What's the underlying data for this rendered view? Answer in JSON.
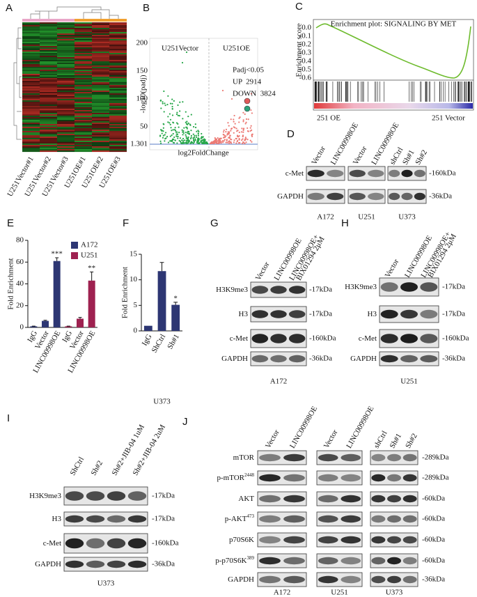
{
  "heatmap": {
    "letter": "A",
    "samples": [
      "U251Vector#1",
      "U251Vector#2",
      "U251Vector#3",
      "U251OE#1",
      "U251OE#2",
      "U251OE#3"
    ]
  },
  "volcano": {
    "letter": "B",
    "left_label": "U251Vector",
    "right_label": "U251OE",
    "threshold": "Padj<0.05",
    "up": "UP  2914",
    "down": "DOWN  3824",
    "y_axis": "-log10(padj)",
    "x_axis": "log2FoldChange",
    "yticks": [
      "200",
      "150",
      "100",
      "50",
      "1.301"
    ]
  },
  "gsea": {
    "letter": "C",
    "title": "Enrichment plot: SIGNALING BY MET",
    "y_axis": "Enrichment score",
    "yticks": [
      "0.0",
      "-0.1",
      "-0.2",
      "-0.3",
      "-0.4",
      "-0.5",
      "-0.6"
    ],
    "left": "251 OE",
    "right": "251 Vector"
  },
  "blot_d": {
    "letter": "D",
    "lanes": [
      [
        "Vector",
        "LINC00998OE"
      ],
      [
        "Vector",
        "LINC00998OE"
      ],
      [
        "shCtrl",
        "Sh#1",
        "Sh#2"
      ]
    ],
    "cell_lines": [
      "A172",
      "U251",
      "U373"
    ],
    "rows": [
      {
        "label": "c-Met",
        "kda": "-160kDa"
      },
      {
        "label": "GAPDH",
        "kda": "-36kDa"
      }
    ]
  },
  "blot_g": {
    "letter": "G",
    "lanes": [
      [
        "Vector",
        "LINC00998OE",
        [
          "LINC00998OE+",
          "BIX01294 2μM"
        ]
      ]
    ],
    "cell_lines": [
      "A172"
    ],
    "rows": [
      {
        "label": "H3K9me3",
        "kda": "-17kDa"
      },
      {
        "label": "H3",
        "kda": "-17kDa"
      },
      {
        "label": "c-Met",
        "kda": "-160kDa"
      },
      {
        "label": "GAPDH",
        "kda": "-36kDa"
      }
    ]
  },
  "blot_h": {
    "letter": "H",
    "lanes": [
      [
        "Vector",
        "LINC00998OE",
        [
          "LINC00998OE+",
          "BIX01294 2μM"
        ]
      ]
    ],
    "cell_lines": [
      "U251"
    ],
    "rows": [
      {
        "label": "H3K9me3",
        "kda": "-17kDa"
      },
      {
        "label": "H3",
        "kda": "-17kDa"
      },
      {
        "label": "c-Met",
        "kda": "-160kDa"
      },
      {
        "label": "GAPDH",
        "kda": "-36kDa"
      }
    ]
  },
  "blot_i": {
    "letter": "I",
    "lanes": [
      [
        "ShCtrl",
        "Sh#2",
        "Sh#2+JIB-04 1uM",
        "Sh#2+JIB-04 2uM"
      ]
    ],
    "cell_lines": [
      "U373"
    ],
    "rows": [
      {
        "label": "H3K9me3",
        "kda": "-17kDa"
      },
      {
        "label": "H3",
        "kda": "-17kDa"
      },
      {
        "label": "c-Met",
        "kda": "-160kDa"
      },
      {
        "label": "GAPDH",
        "kda": "-36kDa"
      }
    ]
  },
  "blot_j": {
    "letter": "J",
    "lanes": [
      [
        "Vector",
        "LINC00998OE"
      ],
      [
        "Vector",
        "LINC00998OE"
      ],
      [
        "shCtrl",
        "Sh#1",
        "Sh#2"
      ]
    ],
    "cell_lines": [
      "A172",
      "U251",
      "U373"
    ],
    "rows": [
      {
        "label": "mTOR",
        "kda": "-289kDa"
      },
      {
        "label": "p-mTOR",
        "sup": "2448",
        "kda": "-289kDa"
      },
      {
        "label": "AKT",
        "kda": "-60kDa"
      },
      {
        "label": "p-AKT",
        "sup": "473",
        "kda": "-60kDa"
      },
      {
        "label": "p70S6K",
        "kda": "-60kDa"
      },
      {
        "label": "p-p70S6K",
        "sup": "389",
        "kda": "-60kDa"
      },
      {
        "label": "GAPDH",
        "kda": "-36kDa"
      }
    ]
  },
  "chart_data": [
    {
      "type": "bar",
      "letter": "E",
      "ylabel": "Fold Enrichment",
      "categories": [
        "IgG",
        "Vector",
        "LINC00998OE",
        "IgG",
        "Vector",
        "LINC00998OE"
      ],
      "series": [
        {
          "name": "A172",
          "color": "#2d3673",
          "values": [
            1,
            6,
            61,
            null,
            null,
            null
          ],
          "errors": [
            0.2,
            0.6,
            3,
            null,
            null,
            null
          ]
        },
        {
          "name": "U251",
          "color": "#9e2150",
          "values": [
            null,
            null,
            null,
            1,
            8,
            43
          ],
          "errors": [
            null,
            null,
            null,
            0.2,
            1.2,
            8
          ]
        }
      ],
      "annotations": [
        "***",
        "**"
      ],
      "ylim": [
        0,
        80
      ],
      "yticks": [
        0,
        20,
        40,
        60,
        80
      ],
      "legend": "upper right"
    },
    {
      "type": "bar",
      "letter": "F",
      "ylabel": "Fold Enrichment",
      "xlabel": "U373",
      "categories": [
        "IgG",
        "ShCtrl",
        "Sh#1"
      ],
      "series": [
        {
          "color": "#2d3673",
          "values": [
            1,
            11.7,
            5.1
          ],
          "errors": [
            0,
            1.7,
            0.5
          ]
        }
      ],
      "annotations": [
        "*"
      ],
      "ylim": [
        0,
        15
      ],
      "yticks": [
        0,
        5,
        10,
        15
      ]
    }
  ]
}
